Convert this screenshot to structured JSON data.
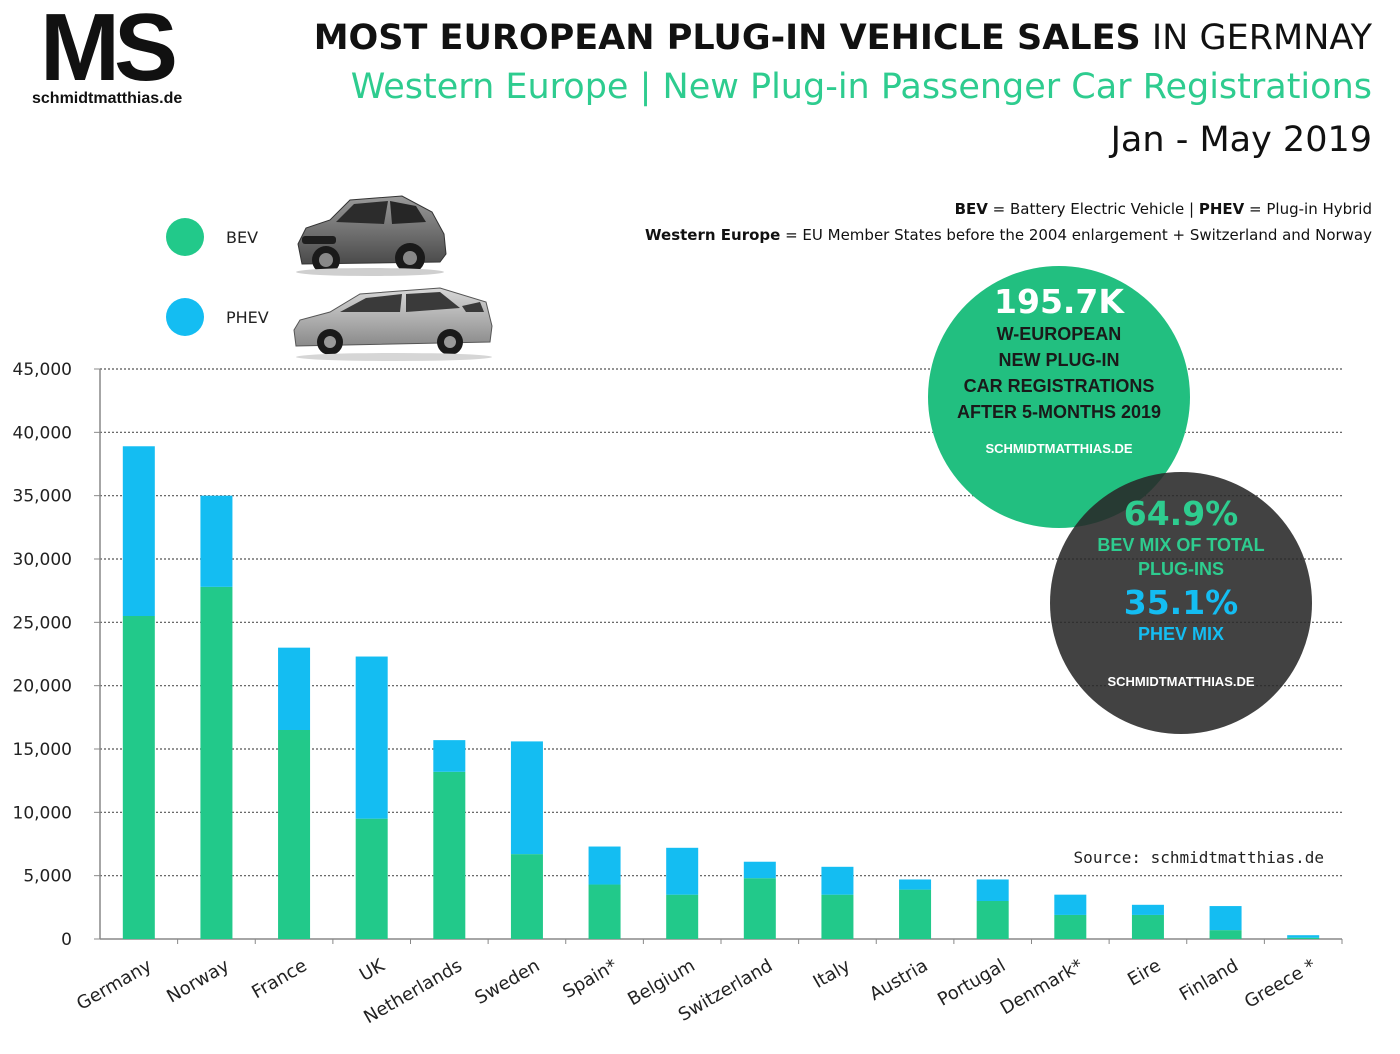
{
  "logo": {
    "mark": "MS",
    "site": "schmidtmatthias.de"
  },
  "header": {
    "title_bold": "MOST EUROPEAN PLUG-IN VEHICLE SALES",
    "title_rest": " IN GERMNAY",
    "subtitle": "Western Europe | New Plug-in Passenger Car Registrations",
    "period": "Jan - May 2019"
  },
  "definitions": {
    "line1_bev": "BEV",
    "line1_bev_def": " = Battery Electric Vehicle | ",
    "line1_phev": "PHEV",
    "line1_phev_def": " = Plug-in Hybrid",
    "line2_term": "Western Europe",
    "line2_def": " = EU Member States before the 2004 enlargement + Switzerland and Norway"
  },
  "legend": {
    "bev_label": "BEV",
    "phev_label": "PHEV",
    "bev_color": "#22c98a",
    "phev_color": "#14bdf2"
  },
  "source": "Source: schmidtmatthias.de",
  "bubble_total": {
    "value": "195.7K",
    "line1": "W-EUROPEAN",
    "line2": "NEW PLUG-IN",
    "line3": "CAR REGISTRATIONS",
    "line4": "AFTER 5-MONTHS 2019",
    "site": "SCHMIDTMATTHIAS.DE"
  },
  "bubble_mix": {
    "bev_value": "64.9%",
    "bev_line1": "BEV MIX OF TOTAL",
    "bev_line2": "PLUG-INS",
    "phev_value": "35.1%",
    "phev_line1": "PHEV MIX",
    "site": "SCHMIDTMATTHIAS.DE"
  },
  "chart_data": {
    "type": "bar",
    "stacked": true,
    "categories": [
      "Germany",
      "Norway",
      "France",
      "UK",
      "Netherlands",
      "Sweden",
      "Spain*",
      "Belgium",
      "Switzerland",
      "Italy",
      "Austria",
      "Portugal",
      "Denmark*",
      "Eire",
      "Finland",
      "Greece *"
    ],
    "series": [
      {
        "name": "BEV",
        "color": "#22c98a",
        "values": [
          25500,
          27800,
          16500,
          9500,
          13200,
          6700,
          4300,
          3500,
          4800,
          3500,
          3900,
          3000,
          1900,
          1900,
          700,
          100
        ]
      },
      {
        "name": "PHEV",
        "color": "#14bdf2",
        "values": [
          13400,
          7200,
          6500,
          12800,
          2500,
          8900,
          3000,
          3700,
          1300,
          2200,
          800,
          1700,
          1600,
          800,
          1900,
          200
        ]
      }
    ],
    "ylim": [
      0,
      45000
    ],
    "yticks": [
      "45,000",
      "40,000",
      "35,000",
      "30,000",
      "25,000",
      "20,000",
      "15,000",
      "10,000",
      "5,000",
      "0"
    ],
    "ytick_values": [
      45000,
      40000,
      35000,
      30000,
      25000,
      20000,
      15000,
      10000,
      5000,
      0
    ],
    "grid": "dotted horizontal"
  }
}
